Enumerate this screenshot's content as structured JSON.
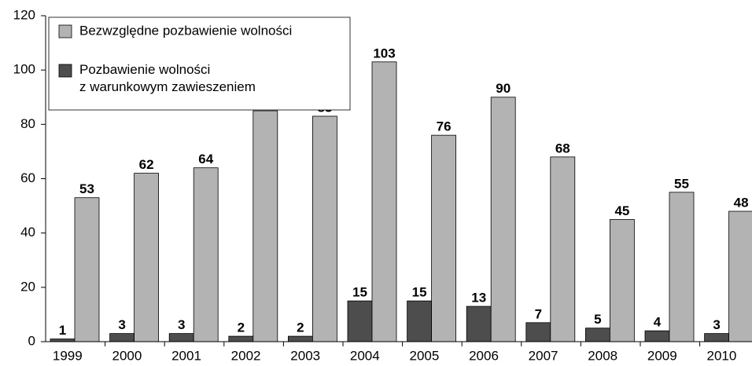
{
  "chart_data": {
    "type": "bar",
    "categories": [
      "1999",
      "2000",
      "2001",
      "2002",
      "2003",
      "2004",
      "2005",
      "2006",
      "2007",
      "2008",
      "2009",
      "2010"
    ],
    "series": [
      {
        "name": "Pozbawienie wolności z warunkowym zawieszeniem",
        "color": "#4d4d4d",
        "values": [
          1,
          3,
          3,
          2,
          2,
          15,
          15,
          13,
          7,
          5,
          4,
          3
        ]
      },
      {
        "name": "Bezwzględne pozbawienie wolności",
        "color": "#b3b3b3",
        "values": [
          53,
          62,
          64,
          85,
          83,
          103,
          76,
          90,
          68,
          45,
          55,
          48
        ]
      }
    ],
    "ylim": [
      0,
      120
    ],
    "yticks": [
      0,
      20,
      40,
      60,
      80,
      100,
      120
    ],
    "legend": "upper left",
    "grid": false
  }
}
